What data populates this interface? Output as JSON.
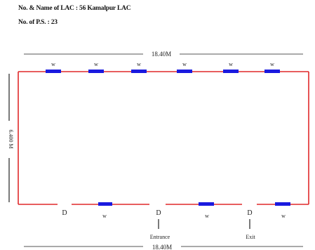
{
  "header": {
    "lac_label": "No. & Name of LAC :",
    "lac_value": "56 Kamalpur LAC",
    "ps_label": "No. of P.S. :",
    "ps_value": "23"
  },
  "plan": {
    "top_dimension": "18.40M",
    "bottom_dimension": "18.40M",
    "left_dimension": "6.400 M",
    "wall_color": "#e0282a",
    "window_color": "#1a1adf",
    "window_label": "w",
    "door_label": "D",
    "entrance_label": "Entrance",
    "exit_label": "Exit"
  }
}
